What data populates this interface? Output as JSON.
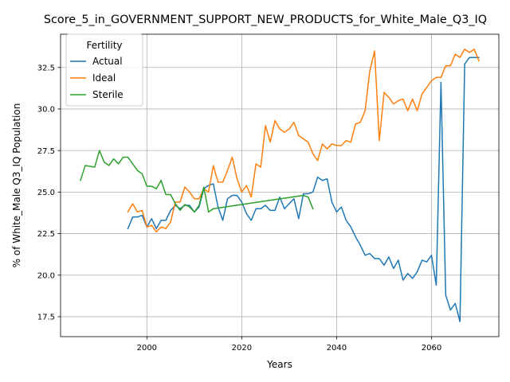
{
  "chart_data": {
    "type": "line",
    "title": "Score_5_in_GOVERNMENT_SUPPORT_NEW_PRODUCTS_for_White_Male_Q3_IQ",
    "xlabel": "Years",
    "ylabel": "% of White_Male Q3_IQ Population",
    "xlim": [
      2076,
      2073
    ],
    "ylim": [
      16.3,
      34.5
    ],
    "grid": true,
    "xticks": [
      2000,
      2020,
      2040,
      2060
    ],
    "xtick_labels": [
      "2000",
      "2020",
      "2040",
      "2060"
    ],
    "yticks": [
      17.5,
      20.0,
      22.5,
      25.0,
      27.5,
      30.0,
      32.5
    ],
    "ytick_labels": [
      "17.5",
      "20.0",
      "22.5",
      "25.0",
      "27.5",
      "30.0",
      "32.5"
    ],
    "legend": {
      "title": "Fertility",
      "placement": "top-left"
    },
    "series": [
      {
        "name": "Actual",
        "color": "#1f77b4",
        "x": [
          1996,
          1997,
          1998,
          1999,
          2000,
          2001,
          2002,
          2003,
          2004,
          2005,
          2006,
          2007,
          2008,
          2009,
          2010,
          2011,
          2012,
          2013,
          2014,
          2015,
          2016,
          2017,
          2018,
          2019,
          2020,
          2021,
          2022,
          2023,
          2024,
          2025,
          2026,
          2027,
          2028,
          2029,
          2030,
          2031,
          2032,
          2033,
          2034,
          2035,
          2036,
          2037,
          2038,
          2039,
          2040,
          2041,
          2042,
          2043,
          2044,
          2045,
          2046,
          2047,
          2048,
          2049,
          2050,
          2051,
          2052,
          2053,
          2054,
          2055,
          2056,
          2057,
          2058,
          2059,
          2060,
          2061,
          2062,
          2063,
          2064,
          2065,
          2066,
          2067,
          2068,
          2069,
          2070
        ],
        "values": [
          22.8,
          23.5,
          23.5,
          23.6,
          22.9,
          23.4,
          22.8,
          23.3,
          23.3,
          23.9,
          24.2,
          24.0,
          24.2,
          24.2,
          23.8,
          24.1,
          25.2,
          25.4,
          25.5,
          24.1,
          23.3,
          24.6,
          24.8,
          24.8,
          24.4,
          23.7,
          23.3,
          24.0,
          24.0,
          24.2,
          23.9,
          23.9,
          24.7,
          24.0,
          24.3,
          24.6,
          23.4,
          24.9,
          24.9,
          25.0,
          25.9,
          25.7,
          25.8,
          24.4,
          23.8,
          24.1,
          23.3,
          22.9,
          22.3,
          21.8,
          21.2,
          21.3,
          21.0,
          21.0,
          20.6,
          21.1,
          20.4,
          20.9,
          19.7,
          20.1,
          19.8,
          20.2,
          20.9,
          20.8,
          21.2,
          19.4,
          31.6,
          18.8,
          17.9,
          18.3,
          17.2,
          32.7,
          33.1,
          33.1,
          33.1
        ]
      },
      {
        "name": "Ideal",
        "color": "#ff7f0e",
        "x": [
          1996,
          1997,
          1998,
          1999,
          2000,
          2001,
          2002,
          2003,
          2004,
          2005,
          2006,
          2007,
          2008,
          2009,
          2010,
          2011,
          2012,
          2013,
          2014,
          2015,
          2016,
          2017,
          2018,
          2019,
          2020,
          2021,
          2022,
          2023,
          2024,
          2025,
          2026,
          2027,
          2028,
          2029,
          2030,
          2031,
          2032,
          2033,
          2034,
          2035,
          2036,
          2037,
          2038,
          2039,
          2040,
          2041,
          2042,
          2043,
          2044,
          2045,
          2046,
          2047,
          2048,
          2049,
          2050,
          2051,
          2052,
          2053,
          2054,
          2055,
          2056,
          2057,
          2058,
          2059,
          2060,
          2061,
          2062,
          2063,
          2064,
          2065,
          2066,
          2067,
          2068,
          2069,
          2070
        ],
        "values": [
          23.8,
          24.3,
          23.8,
          23.9,
          22.9,
          23.0,
          22.6,
          22.9,
          22.8,
          23.2,
          24.4,
          24.4,
          25.3,
          25.0,
          24.6,
          24.6,
          25.2,
          25.0,
          26.6,
          25.6,
          25.6,
          26.3,
          27.1,
          25.8,
          25.0,
          25.4,
          24.7,
          26.7,
          26.5,
          29.0,
          28.0,
          29.3,
          28.8,
          28.6,
          28.8,
          29.2,
          28.4,
          28.2,
          28.0,
          27.3,
          26.9,
          27.9,
          27.6,
          27.9,
          27.8,
          27.8,
          28.1,
          28.0,
          29.1,
          29.2,
          29.9,
          32.3,
          33.5,
          28.1,
          31.0,
          30.7,
          30.3,
          30.5,
          30.6,
          29.9,
          30.6,
          29.9,
          30.9,
          31.3,
          31.7,
          31.9,
          31.9,
          32.6,
          32.6,
          33.3,
          33.1,
          33.6,
          33.4,
          33.6,
          32.9
        ]
      },
      {
        "name": "Sterile",
        "color": "#2ca02c",
        "x": [
          1986,
          1987,
          1988,
          1989,
          1990,
          1991,
          1992,
          1993,
          1994,
          1995,
          1996,
          1997,
          1998,
          1999,
          2000,
          2001,
          2002,
          2003,
          2004,
          2005,
          2006,
          2007,
          2008,
          2009,
          2010,
          2011,
          2012,
          2013,
          2014,
          2033,
          2034,
          2035
        ],
        "values": [
          25.7,
          26.6,
          26.55,
          26.5,
          27.5,
          26.8,
          26.6,
          27.0,
          26.7,
          27.1,
          27.1,
          26.7,
          26.3,
          26.1,
          25.35,
          25.35,
          25.2,
          25.7,
          24.85,
          24.85,
          24.3,
          23.9,
          24.25,
          24.1,
          23.8,
          24.2,
          25.3,
          23.8,
          24.0,
          24.8,
          24.7,
          24.0
        ]
      }
    ]
  }
}
